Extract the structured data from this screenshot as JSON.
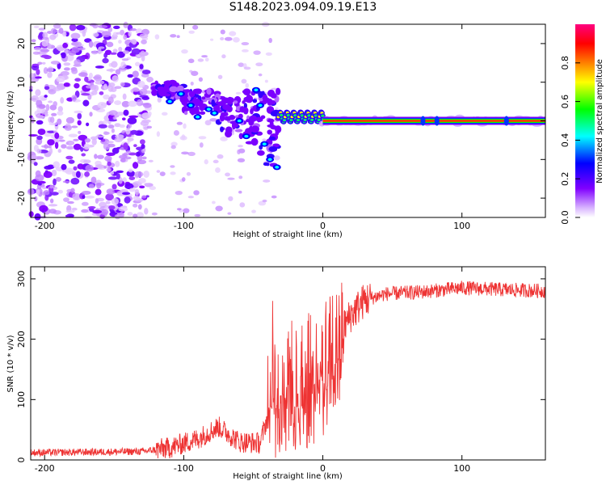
{
  "title": "S148.2023.094.09.19.E13",
  "chart_data": [
    {
      "type": "heatmap",
      "xlabel": "Height of straight line (km)",
      "ylabel": "Frequency (Hz)",
      "xlim": [
        -210,
        160
      ],
      "ylim": [
        -25,
        25
      ],
      "xticks": [
        -200,
        -100,
        0,
        100
      ],
      "yticks": [
        -20,
        -10,
        0,
        10,
        20
      ],
      "colorbar": {
        "label": "Normalized spectral amplitude",
        "range": [
          0,
          1
        ],
        "ticks": [
          "0.0",
          "0.2",
          "0.4",
          "0.6",
          "0.8"
        ],
        "colormap": [
          "#ffffff",
          "#d8b4ff",
          "#8000ff",
          "#0000ff",
          "#00ffff",
          "#00ff00",
          "#ffff00",
          "#ff8000",
          "#ff0000",
          "#ff0080"
        ]
      },
      "features": {
        "noise_region_km": [
          -210,
          -125
        ],
        "scatter_cluster_km": [
          -125,
          -30
        ],
        "scatter_cluster_freq_hz": [
          -17,
          12
        ],
        "carrier_line_start_km": -35,
        "carrier_line_freq_hz": 0
      }
    },
    {
      "type": "line",
      "xlabel": "Height of straight line (km)",
      "ylabel": "SNR (10 * v/v)",
      "xlim": [
        -210,
        160
      ],
      "ylim": [
        0,
        320
      ],
      "xticks": [
        -200,
        -100,
        0,
        100
      ],
      "yticks": [
        0,
        100,
        200,
        300
      ],
      "color": "#ee3333",
      "envelope": [
        {
          "x": -210,
          "y": 12
        },
        {
          "x": -130,
          "y": 14
        },
        {
          "x": -110,
          "y": 20
        },
        {
          "x": -90,
          "y": 35
        },
        {
          "x": -75,
          "y": 55
        },
        {
          "x": -60,
          "y": 30
        },
        {
          "x": -45,
          "y": 28
        },
        {
          "x": -35,
          "y": 110
        },
        {
          "x": -25,
          "y": 140
        },
        {
          "x": -10,
          "y": 150
        },
        {
          "x": 0,
          "y": 170
        },
        {
          "x": 10,
          "y": 200
        },
        {
          "x": 20,
          "y": 240
        },
        {
          "x": 30,
          "y": 265
        },
        {
          "x": 45,
          "y": 275
        },
        {
          "x": 70,
          "y": 278
        },
        {
          "x": 100,
          "y": 285
        },
        {
          "x": 130,
          "y": 282
        },
        {
          "x": 160,
          "y": 280
        }
      ]
    }
  ]
}
